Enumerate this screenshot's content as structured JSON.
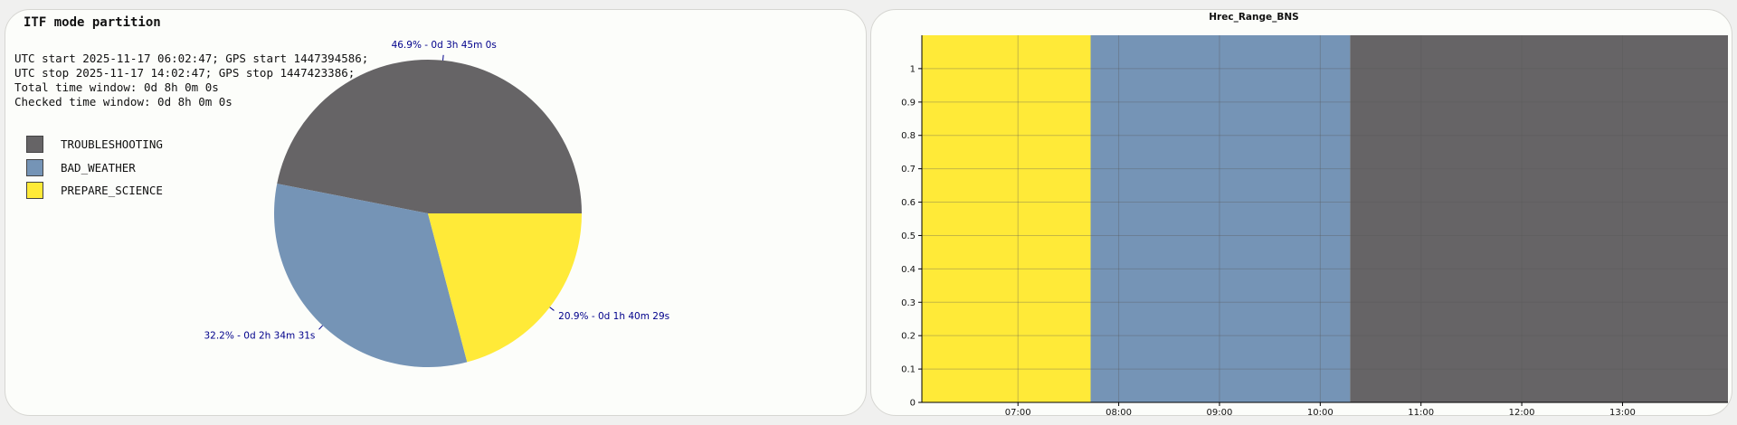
{
  "left_panel": {
    "title": "ITF mode partition",
    "info_lines": [
      "UTC start 2025-11-17 06:02:47; GPS start 1447394586;",
      "UTC stop 2025-11-17 14:02:47; GPS stop 1447423386;",
      "Total time window: 0d 8h 0m 0s",
      "Checked time window: 0d 8h 0m 0s"
    ],
    "legend": [
      {
        "label": "TROUBLESHOOTING",
        "color": "#666466"
      },
      {
        "label": "BAD_WEATHER",
        "color": "#7594b6"
      },
      {
        "label": "PREPARE_SCIENCE",
        "color": "#ffea38"
      }
    ]
  },
  "right_panel": {
    "title": "Hrec_Range_BNS"
  },
  "chart_data": [
    {
      "type": "pie",
      "title": "ITF mode partition",
      "start_angle_deg": 0,
      "direction": "counterclockwise",
      "slices": [
        {
          "name": "TROUBLESHOOTING",
          "percent": 46.9,
          "label": "46.9% - 0d 3h 45m 0s",
          "color": "#666466"
        },
        {
          "name": "BAD_WEATHER",
          "percent": 32.2,
          "label": "32.2% - 0d 2h 34m 31s",
          "color": "#7594b6"
        },
        {
          "name": "PREPARE_SCIENCE",
          "percent": 20.9,
          "label": "20.9% - 0d 1h 40m 29s",
          "color": "#ffea38"
        }
      ],
      "label_color": "#00008b"
    },
    {
      "type": "area",
      "title": "Hrec_Range_BNS",
      "xlim": [
        "06:02:47",
        "14:02:47"
      ],
      "ylim": [
        0,
        1.1
      ],
      "xticks": [
        "07:00",
        "08:00",
        "09:00",
        "10:00",
        "11:00",
        "12:00",
        "13:00"
      ],
      "yticks": [
        "0",
        "0.1",
        "0.2",
        "0.3",
        "0.4",
        "0.5",
        "0.6",
        "0.7",
        "0.8",
        "0.9",
        "1"
      ],
      "grid": true,
      "segments": [
        {
          "mode": "PREPARE_SCIENCE",
          "start": "06:02:47",
          "end": "07:43:16",
          "color": "#ffea38"
        },
        {
          "mode": "BAD_WEATHER",
          "start": "07:43:16",
          "end": "10:17:47",
          "color": "#7594b6"
        },
        {
          "mode": "TROUBLESHOOTING",
          "start": "10:17:47",
          "end": "14:02:47",
          "color": "#666466"
        }
      ]
    }
  ]
}
